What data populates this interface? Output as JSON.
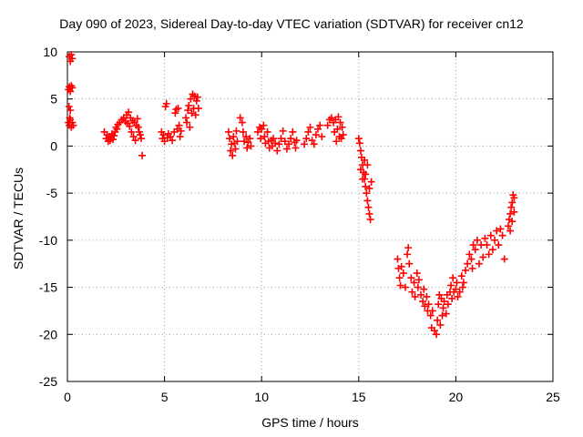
{
  "chart_data": {
    "type": "scatter",
    "title": "Day 090 of 2023, Sidereal Day-to-day VTEC variation (SDTVAR) for receiver cn12",
    "xlabel": "GPS time / hours",
    "ylabel": "SDTVAR / TECUs",
    "xlim": [
      0,
      25
    ],
    "ylim": [
      -25,
      10
    ],
    "grid": true,
    "marker": "+",
    "marker_color": "#ff0000",
    "xticks": [
      0,
      5,
      10,
      15,
      20,
      25
    ],
    "yticks": [
      10,
      5,
      0,
      -5,
      -10,
      -15,
      -20,
      -25
    ],
    "points": [
      [
        0.05,
        6.0
      ],
      [
        0.1,
        6.3
      ],
      [
        0.15,
        5.8
      ],
      [
        0.2,
        6.4
      ],
      [
        0.25,
        6.2
      ],
      [
        0.08,
        4.2
      ],
      [
        0.15,
        3.8
      ],
      [
        0.05,
        2.5
      ],
      [
        0.1,
        2.2
      ],
      [
        0.15,
        2.8
      ],
      [
        0.2,
        2.0
      ],
      [
        0.25,
        2.5
      ],
      [
        0.3,
        2.2
      ],
      [
        0.12,
        3.0
      ],
      [
        0.1,
        9.5
      ],
      [
        0.2,
        9.7
      ],
      [
        0.25,
        9.3
      ],
      [
        0.15,
        9.0
      ],
      [
        1.9,
        1.5
      ],
      [
        2.0,
        0.8
      ],
      [
        2.05,
        1.2
      ],
      [
        2.1,
        0.5
      ],
      [
        2.15,
        1.0
      ],
      [
        2.2,
        0.6
      ],
      [
        2.25,
        0.9
      ],
      [
        2.3,
        1.3
      ],
      [
        2.35,
        0.7
      ],
      [
        2.4,
        1.1
      ],
      [
        2.45,
        1.5
      ],
      [
        2.5,
        2.0
      ],
      [
        2.55,
        1.8
      ],
      [
        2.6,
        2.3
      ],
      [
        2.7,
        2.5
      ],
      [
        2.8,
        2.8
      ],
      [
        2.9,
        3.0
      ],
      [
        3.0,
        2.6
      ],
      [
        3.05,
        3.3
      ],
      [
        3.1,
        2.4
      ],
      [
        3.15,
        3.6
      ],
      [
        3.2,
        2.1
      ],
      [
        3.25,
        3.0
      ],
      [
        3.3,
        1.5
      ],
      [
        3.35,
        2.7
      ],
      [
        3.4,
        1.0
      ],
      [
        3.45,
        2.5
      ],
      [
        3.5,
        0.6
      ],
      [
        3.55,
        2.2
      ],
      [
        3.6,
        2.9
      ],
      [
        3.65,
        2.0
      ],
      [
        3.7,
        1.5
      ],
      [
        3.75,
        1.2
      ],
      [
        3.8,
        0.8
      ],
      [
        3.85,
        -1.0
      ],
      [
        4.85,
        1.5
      ],
      [
        4.9,
        0.8
      ],
      [
        4.95,
        1.2
      ],
      [
        5.0,
        0.5
      ],
      [
        5.05,
        4.2
      ],
      [
        5.1,
        4.5
      ],
      [
        5.15,
        0.9
      ],
      [
        5.2,
        1.3
      ],
      [
        5.3,
        1.0
      ],
      [
        5.4,
        0.6
      ],
      [
        5.5,
        1.5
      ],
      [
        5.55,
        3.5
      ],
      [
        5.6,
        3.9
      ],
      [
        5.65,
        1.8
      ],
      [
        5.7,
        4.0
      ],
      [
        5.75,
        2.2
      ],
      [
        5.8,
        1.0
      ],
      [
        5.85,
        1.6
      ],
      [
        6.1,
        3.0
      ],
      [
        6.15,
        2.5
      ],
      [
        6.2,
        3.8
      ],
      [
        6.25,
        4.3
      ],
      [
        6.3,
        2.0
      ],
      [
        6.35,
        5.0
      ],
      [
        6.4,
        3.5
      ],
      [
        6.45,
        5.5
      ],
      [
        6.5,
        4.0
      ],
      [
        6.55,
        5.3
      ],
      [
        6.6,
        3.3
      ],
      [
        6.65,
        4.8
      ],
      [
        6.7,
        5.2
      ],
      [
        6.75,
        4.0
      ],
      [
        8.3,
        1.5
      ],
      [
        8.35,
        0.8
      ],
      [
        8.4,
        -0.5
      ],
      [
        8.45,
        0.2
      ],
      [
        8.5,
        -1.0
      ],
      [
        8.55,
        1.0
      ],
      [
        8.6,
        0.3
      ],
      [
        8.65,
        -0.3
      ],
      [
        8.7,
        1.6
      ],
      [
        8.75,
        0.5
      ],
      [
        8.9,
        3.0
      ],
      [
        9.0,
        2.5
      ],
      [
        9.05,
        1.5
      ],
      [
        9.1,
        0.5
      ],
      [
        9.2,
        1.0
      ],
      [
        9.25,
        -0.2
      ],
      [
        9.3,
        0.4
      ],
      [
        9.4,
        0.8
      ],
      [
        9.45,
        0.0
      ],
      [
        9.8,
        1.5
      ],
      [
        9.9,
        2.0
      ],
      [
        9.95,
        0.8
      ],
      [
        10.0,
        1.8
      ],
      [
        10.1,
        2.2
      ],
      [
        10.15,
        1.0
      ],
      [
        10.2,
        0.3
      ],
      [
        10.3,
        1.5
      ],
      [
        10.35,
        0.5
      ],
      [
        10.4,
        -0.2
      ],
      [
        10.5,
        0.6
      ],
      [
        10.55,
        0.0
      ],
      [
        10.6,
        0.8
      ],
      [
        10.7,
        0.3
      ],
      [
        10.8,
        -0.5
      ],
      [
        10.9,
        0.2
      ],
      [
        11.0,
        0.8
      ],
      [
        11.1,
        1.6
      ],
      [
        11.2,
        0.5
      ],
      [
        11.3,
        -0.3
      ],
      [
        11.4,
        0.2
      ],
      [
        11.5,
        0.8
      ],
      [
        11.6,
        1.5
      ],
      [
        11.7,
        0.4
      ],
      [
        11.75,
        -0.2
      ],
      [
        11.8,
        0.6
      ],
      [
        12.2,
        0.2
      ],
      [
        12.3,
        0.8
      ],
      [
        12.4,
        1.5
      ],
      [
        12.5,
        2.0
      ],
      [
        12.6,
        0.6
      ],
      [
        12.7,
        0.2
      ],
      [
        12.8,
        1.2
      ],
      [
        12.9,
        1.8
      ],
      [
        13.0,
        2.2
      ],
      [
        13.1,
        1.0
      ],
      [
        13.4,
        2.2
      ],
      [
        13.5,
        2.8
      ],
      [
        13.6,
        3.0
      ],
      [
        13.7,
        2.5
      ],
      [
        13.75,
        1.5
      ],
      [
        13.8,
        2.8
      ],
      [
        13.85,
        0.5
      ],
      [
        13.9,
        1.8
      ],
      [
        13.95,
        3.1
      ],
      [
        14.0,
        1.0
      ],
      [
        14.05,
        2.5
      ],
      [
        14.1,
        0.8
      ],
      [
        14.15,
        2.0
      ],
      [
        14.2,
        1.2
      ],
      [
        15.0,
        0.8
      ],
      [
        15.05,
        0.3
      ],
      [
        15.1,
        -0.5
      ],
      [
        15.15,
        -1.2
      ],
      [
        15.2,
        -2.0
      ],
      [
        15.25,
        -2.8
      ],
      [
        15.3,
        -3.5
      ],
      [
        15.35,
        -4.3
      ],
      [
        15.4,
        -5.0
      ],
      [
        15.45,
        -5.8
      ],
      [
        15.5,
        -6.5
      ],
      [
        15.55,
        -7.2
      ],
      [
        15.6,
        -7.8
      ],
      [
        15.1,
        -2.5
      ],
      [
        15.2,
        -3.5
      ],
      [
        15.3,
        -1.5
      ],
      [
        15.35,
        -3.0
      ],
      [
        15.45,
        -2.0
      ],
      [
        15.55,
        -4.5
      ],
      [
        15.65,
        -3.8
      ],
      [
        17.0,
        -12.0
      ],
      [
        17.05,
        -13.0
      ],
      [
        17.1,
        -14.0
      ],
      [
        17.15,
        -14.8
      ],
      [
        17.2,
        -12.8
      ],
      [
        17.3,
        -13.5
      ],
      [
        17.4,
        -15.0
      ],
      [
        17.5,
        -11.5
      ],
      [
        17.55,
        -10.8
      ],
      [
        17.6,
        -12.5
      ],
      [
        17.7,
        -14.0
      ],
      [
        17.75,
        -15.5
      ],
      [
        17.85,
        -14.5
      ],
      [
        17.9,
        -16.0
      ],
      [
        18.0,
        -13.5
      ],
      [
        18.05,
        -15.0
      ],
      [
        18.1,
        -14.2
      ],
      [
        18.2,
        -15.8
      ],
      [
        18.3,
        -16.5
      ],
      [
        18.35,
        -15.2
      ],
      [
        18.4,
        -17.0
      ],
      [
        18.5,
        -16.0
      ],
      [
        18.55,
        -17.5
      ],
      [
        18.6,
        -16.8
      ],
      [
        18.7,
        -18.0
      ],
      [
        18.75,
        -19.3
      ],
      [
        18.8,
        -17.5
      ],
      [
        18.9,
        -19.6
      ],
      [
        19.0,
        -20.0
      ],
      [
        19.05,
        -18.5
      ],
      [
        19.1,
        -16.8
      ],
      [
        19.15,
        -15.8
      ],
      [
        19.2,
        -19.0
      ],
      [
        19.25,
        -16.2
      ],
      [
        19.3,
        -18.0
      ],
      [
        19.35,
        -17.2
      ],
      [
        19.4,
        -16.5
      ],
      [
        19.5,
        -17.8
      ],
      [
        19.55,
        -15.8
      ],
      [
        19.6,
        -16.8
      ],
      [
        19.7,
        -15.5
      ],
      [
        19.75,
        -14.8
      ],
      [
        19.8,
        -16.2
      ],
      [
        19.85,
        -14.0
      ],
      [
        19.9,
        -15.5
      ],
      [
        20.0,
        -15.2
      ],
      [
        20.05,
        -14.5
      ],
      [
        20.1,
        -16.0
      ],
      [
        20.2,
        -15.5
      ],
      [
        20.3,
        -13.8
      ],
      [
        20.35,
        -15.0
      ],
      [
        20.4,
        -14.5
      ],
      [
        20.5,
        -13.2
      ],
      [
        20.6,
        -12.5
      ],
      [
        20.7,
        -11.5
      ],
      [
        20.8,
        -12.0
      ],
      [
        20.85,
        -13.0
      ],
      [
        20.9,
        -10.5
      ],
      [
        21.0,
        -11.0
      ],
      [
        21.1,
        -10.0
      ],
      [
        21.2,
        -12.5
      ],
      [
        21.3,
        -10.5
      ],
      [
        21.4,
        -11.8
      ],
      [
        21.5,
        -9.8
      ],
      [
        21.6,
        -10.5
      ],
      [
        21.7,
        -11.5
      ],
      [
        21.8,
        -9.5
      ],
      [
        21.9,
        -11.0
      ],
      [
        22.0,
        -10.0
      ],
      [
        22.1,
        -9.0
      ],
      [
        22.2,
        -10.5
      ],
      [
        22.3,
        -8.8
      ],
      [
        22.4,
        -9.5
      ],
      [
        22.5,
        -12.0
      ],
      [
        22.7,
        -8.5
      ],
      [
        22.75,
        -7.8
      ],
      [
        22.8,
        -7.2
      ],
      [
        22.85,
        -6.5
      ],
      [
        22.9,
        -6.0
      ],
      [
        22.95,
        -5.2
      ],
      [
        23.0,
        -5.5
      ],
      [
        22.8,
        -9.0
      ],
      [
        22.9,
        -8.0
      ],
      [
        23.0,
        -7.0
      ]
    ]
  }
}
